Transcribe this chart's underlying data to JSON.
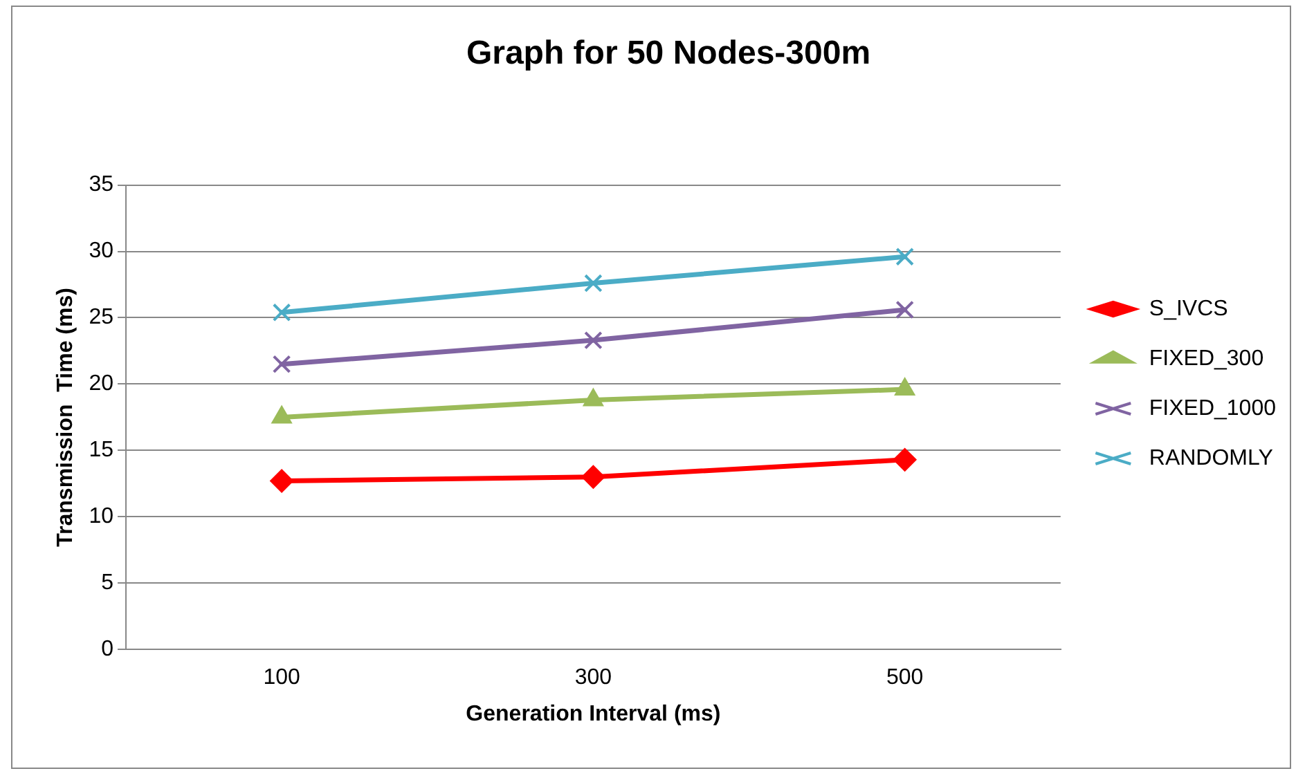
{
  "chart_data": {
    "type": "line",
    "title": "Graph for 50 Nodes-300m",
    "xlabel": "Generation Interval (ms)",
    "ylabel": "Transmission  Time (ms)",
    "categories": [
      "100",
      "300",
      "500"
    ],
    "ylim": [
      0,
      35
    ],
    "yticks": [
      0,
      5,
      10,
      15,
      20,
      25,
      30,
      35
    ],
    "grid": "y",
    "legend": "right",
    "line_style": "solid",
    "series": [
      {
        "name": "S_IVCS",
        "color": "#ff0000",
        "marker": "diamond",
        "values": [
          12.7,
          13.0,
          14.3
        ]
      },
      {
        "name": "FIXED_300",
        "color": "#9bbb59",
        "marker": "triangle",
        "values": [
          17.5,
          18.8,
          19.6
        ]
      },
      {
        "name": "FIXED_1000",
        "color": "#8064a2",
        "marker": "cross",
        "values": [
          21.5,
          23.3,
          25.6
        ]
      },
      {
        "name": "RANDOMLY",
        "color": "#4bacc6",
        "marker": "cross",
        "values": [
          25.4,
          27.6,
          29.6
        ]
      }
    ]
  }
}
